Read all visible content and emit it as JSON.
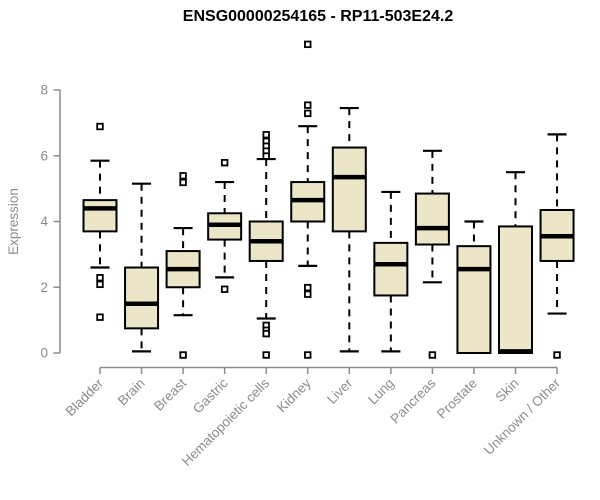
{
  "title": "ENSG00000254165 - RP11-503E24.2",
  "chart_data": {
    "type": "boxplot",
    "title": "ENSG00000254165 - RP11-503E24.2",
    "xlabel": "",
    "ylabel": "Expression",
    "ylim": [
      0,
      8
    ],
    "yticks": [
      0,
      2,
      4,
      6,
      8
    ],
    "grid": false,
    "legend": "none",
    "categories": [
      "Bladder",
      "Brain",
      "Breast",
      "Gastric",
      "Hematopoietic cells",
      "Kidney",
      "Liver",
      "Lung",
      "Pancreas",
      "Prostate",
      "Skin",
      "Unknown / Other"
    ],
    "series": [
      {
        "category": "Bladder",
        "whisker_low": 2.6,
        "q1": 3.7,
        "median": 4.4,
        "q3": 4.65,
        "whisker_high": 5.85,
        "outliers": [
          6.95,
          2.35,
          2.15,
          1.15
        ]
      },
      {
        "category": "Brain",
        "whisker_low": 0.05,
        "q1": 0.75,
        "median": 1.5,
        "q3": 2.6,
        "whisker_high": 5.15,
        "outliers": []
      },
      {
        "category": "Breast",
        "whisker_low": 1.15,
        "q1": 2.0,
        "median": 2.55,
        "q3": 3.1,
        "whisker_high": 3.8,
        "outliers": [
          5.45,
          5.25,
          0.0
        ]
      },
      {
        "category": "Gastric",
        "whisker_low": 2.3,
        "q1": 3.45,
        "median": 3.9,
        "q3": 4.25,
        "whisker_high": 5.2,
        "outliers": [
          5.85,
          2.0
        ]
      },
      {
        "category": "Hematopoietic cells",
        "whisker_low": 1.05,
        "q1": 2.8,
        "median": 3.4,
        "q3": 4.0,
        "whisker_high": 5.9,
        "outliers": [
          6.7,
          6.5,
          6.35,
          6.2,
          6.05,
          0.9,
          0.75,
          0.65,
          0.0
        ]
      },
      {
        "category": "Kidney",
        "whisker_low": 2.65,
        "q1": 4.0,
        "median": 4.65,
        "q3": 5.2,
        "whisker_high": 6.9,
        "outliers": [
          9.45,
          7.6,
          7.35,
          2.05,
          1.85,
          0.0
        ]
      },
      {
        "category": "Liver",
        "whisker_low": 0.05,
        "q1": 3.7,
        "median": 5.35,
        "q3": 6.25,
        "whisker_high": 7.45,
        "outliers": []
      },
      {
        "category": "Lung",
        "whisker_low": 0.05,
        "q1": 1.75,
        "median": 2.7,
        "q3": 3.35,
        "whisker_high": 4.9,
        "outliers": []
      },
      {
        "category": "Pancreas",
        "whisker_low": 2.15,
        "q1": 3.3,
        "median": 3.8,
        "q3": 4.85,
        "whisker_high": 6.15,
        "outliers": [
          0.0
        ]
      },
      {
        "category": "Prostate",
        "whisker_low": 0.0,
        "q1": 0.0,
        "median": 2.55,
        "q3": 3.25,
        "whisker_high": 4.0,
        "outliers": []
      },
      {
        "category": "Skin",
        "whisker_low": 0.0,
        "q1": 0.0,
        "median": 0.05,
        "q3": 3.85,
        "whisker_high": 5.5,
        "outliers": []
      },
      {
        "category": "Unknown / Other",
        "whisker_low": 1.2,
        "q1": 2.8,
        "median": 3.55,
        "q3": 4.35,
        "whisker_high": 6.65,
        "outliers": [
          0.0
        ]
      }
    ],
    "style": {
      "box_fill": "#ECE6C8",
      "box_stroke": "#000000",
      "median_color": "#000000",
      "axis_color": "#8C8C8C",
      "label_color": "#8C8C8C",
      "title_color": "#000000",
      "background": "#FFFFFF"
    }
  }
}
